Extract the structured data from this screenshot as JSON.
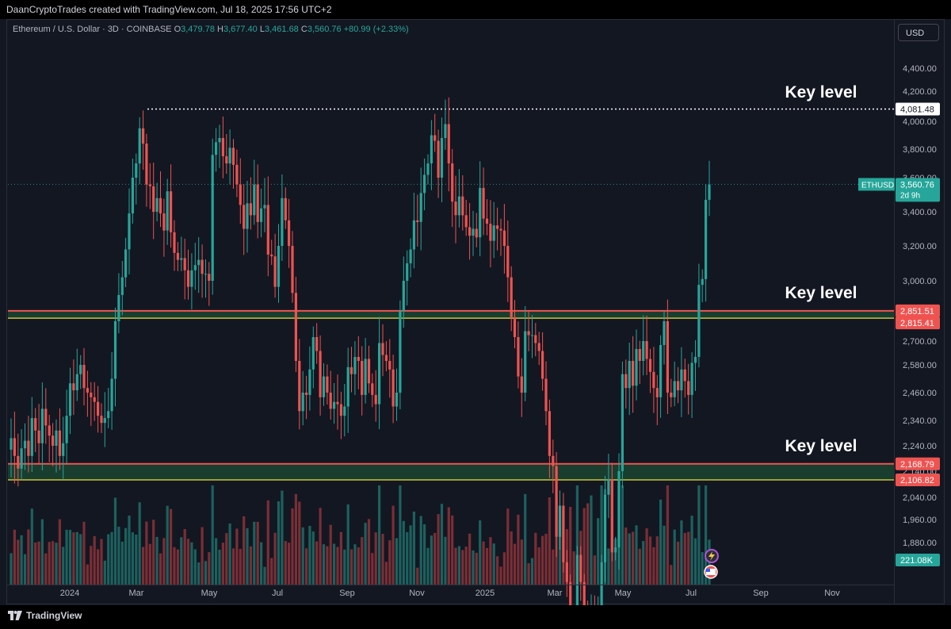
{
  "header": {
    "title": "DaanCryptoTrades created with TradingView.com, Jul 18, 2025 17:56 UTC+2"
  },
  "symbol": {
    "name": "Ethereum / U.S. Dollar · 3D · COINBASE",
    "open_label": "O",
    "open": "3,479.78",
    "high_label": "H",
    "high": "3,677.40",
    "low_label": "L",
    "low": "3,461.68",
    "close_label": "C",
    "close": "3,560.76",
    "change": "+80.99 (+2.33%)"
  },
  "currency_button": "USD",
  "footer": {
    "brand": "TradingView"
  },
  "colors": {
    "background": "#131722",
    "up": "#26a69a",
    "down": "#ef5350",
    "zone_fill": "#1b4332",
    "resistance_line": "#ef5350",
    "support_line": "#c9c23a"
  },
  "chart_data": {
    "type": "candlestick",
    "y_axis": {
      "range": [
        1790,
        4480
      ],
      "ticks": [
        "4,400.00",
        "4,200.00",
        "4,000.00",
        "3,800.00",
        "3,600.00",
        "3,400.00",
        "3,200.00",
        "3,000.00",
        "2,800.00",
        "2,700.00",
        "2,580.00",
        "2,460.00",
        "2,340.00",
        "2,240.00",
        "2,140.00",
        "2,040.00",
        "1,960.00",
        "1,880.00"
      ]
    },
    "x_axis": {
      "ticks": [
        "2024",
        "Mar",
        "May",
        "Jul",
        "Sep",
        "Nov",
        "2025",
        "Mar",
        "May",
        "Jul",
        "Sep",
        "Nov"
      ]
    },
    "annotations": [
      {
        "text": "Key level",
        "level": 4081.48
      },
      {
        "text": "Key level",
        "level": 2851.51
      },
      {
        "text": "Key level",
        "level": 2168.79
      }
    ],
    "levels": {
      "top": {
        "value": 4081.48,
        "label": "4,081.48"
      },
      "mid_high": {
        "value": 2851.51,
        "label": "2,851.51"
      },
      "mid_low": {
        "value": 2815.41,
        "label": "2,815.41"
      },
      "low_high": {
        "value": 2168.79,
        "label": "2,168.79"
      },
      "low_low": {
        "value": 2106.82,
        "label": "2,106.82"
      }
    },
    "last_price": {
      "symbol": "ETHUSD",
      "value": 3560.76,
      "label": "3,560.76",
      "countdown": "2d 9h"
    },
    "volume_label": "221.08K",
    "series": [
      {
        "name": "ETHUSD",
        "close": [
          2270,
          2200,
          2150,
          2230,
          2260,
          2200,
          2350,
          2300,
          2250,
          2390,
          2320,
          2280,
          2240,
          2300,
          2200,
          2250,
          2360,
          2500,
          2470,
          2540,
          2580,
          2480,
          2460,
          2440,
          2420,
          2360,
          2330,
          2350,
          2380,
          2520,
          2800,
          2930,
          3020,
          3180,
          3390,
          3600,
          3700,
          3950,
          3840,
          3560,
          3550,
          3400,
          3480,
          3390,
          3290,
          3520,
          3280,
          3160,
          3120,
          3130,
          3060,
          2970,
          3060,
          3090,
          3120,
          3040,
          3040,
          3000,
          3760,
          3850,
          3880,
          3750,
          3700,
          3810,
          3690,
          3560,
          3440,
          3300,
          3450,
          3380,
          3560,
          3340,
          3420,
          3440,
          3150,
          3140,
          2970,
          3200,
          3480,
          3350,
          3200,
          2940,
          2600,
          2380,
          2460,
          2450,
          2560,
          2720,
          2650,
          2440,
          2530,
          2460,
          2390,
          2420,
          2410,
          2360,
          2400,
          2570,
          2540,
          2620,
          2600,
          2450,
          2610,
          2500,
          2450,
          2410,
          2690,
          2630,
          2600,
          2560,
          2400,
          2460,
          2850,
          3000,
          3100,
          3180,
          3350,
          3340,
          3510,
          3620,
          3700,
          3900,
          3860,
          3600,
          3880,
          3980,
          3700,
          3460,
          3380,
          3490,
          3380,
          3310,
          3260,
          3300,
          3250,
          3540,
          3360,
          3330,
          3230,
          3320,
          3300,
          3290,
          3200,
          3020,
          2820,
          2720,
          2530,
          2460,
          2750,
          2730,
          2730,
          2690,
          2650,
          2520,
          2380,
          2200,
          2160,
          1900,
          2010,
          1800,
          1720,
          1560,
          1520,
          1830,
          1720,
          1580,
          1470,
          1590,
          1560,
          1620,
          1800,
          2050,
          2110,
          1840,
          1860,
          2140,
          2540,
          2480,
          2600,
          2490,
          2660,
          2600,
          2700,
          2610,
          2550,
          2480,
          2440,
          2680,
          2800,
          2460,
          2440,
          2510,
          2470,
          2560,
          2510,
          2450,
          2590,
          2620,
          2980,
          3010,
          3470,
          3560
        ]
      }
    ]
  }
}
